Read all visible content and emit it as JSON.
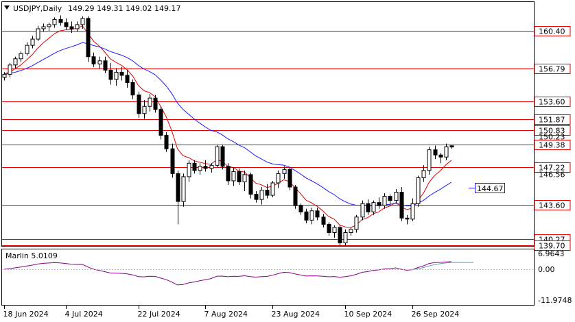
{
  "header": {
    "symbol": "USDJPY,Daily",
    "ohlc": "149.29 149.31 149.02 149.17"
  },
  "indicator": {
    "name": "Marlin 5.0109",
    "scale_top": "6.9643",
    "scale_zero": "0.00",
    "scale_bottom": "-11.9748"
  },
  "price_levels": [
    {
      "value": 160.4,
      "label": "160.40",
      "boxed": true
    },
    {
      "value": 156.79,
      "label": "156.79",
      "boxed": true
    },
    {
      "value": 153.6,
      "label": "153.60",
      "boxed": true
    },
    {
      "value": 151.87,
      "label": "151.87",
      "boxed": true
    },
    {
      "value": 150.83,
      "label": "150.83",
      "boxed": true
    },
    {
      "value": 150.23,
      "label": "150.23",
      "boxed": false
    },
    {
      "value": 149.38,
      "label": "149.38",
      "boxed": true
    },
    {
      "value": 147.22,
      "label": "147.22",
      "boxed": true
    },
    {
      "value": 146.56,
      "label": "146.56",
      "boxed": false
    },
    {
      "value": 143.6,
      "label": "143.60",
      "boxed": true
    },
    {
      "value": 140.27,
      "label": "140.27",
      "boxed": true
    },
    {
      "value": 139.7,
      "label": "139.70",
      "boxed": true
    }
  ],
  "ma_label": "144.67",
  "dates": [
    {
      "label": "18 Jun 2024",
      "bar": 0
    },
    {
      "label": "4 Jul 2024",
      "bar": 11
    },
    {
      "label": "22 Jul 2024",
      "bar": 24
    },
    {
      "label": "7 Aug 2024",
      "bar": 36
    },
    {
      "label": "23 Aug 2024",
      "bar": 48
    },
    {
      "label": "10 Sep 2024",
      "bar": 61
    },
    {
      "label": "26 Sep 2024",
      "bar": 73
    }
  ],
  "colors": {
    "level_line": "#e00000",
    "ma_fast": "#e00000",
    "ma_slow": "#1a1aff",
    "oscillator": "#8b008b",
    "signal": "#5f9ea0",
    "ma_label_box": "#1a1aff"
  },
  "chart_data": {
    "type": "candlestick",
    "ylim": [
      139.5,
      162.0
    ],
    "candles": [
      [
        155.9,
        156.4,
        155.6,
        156.2
      ],
      [
        156.2,
        157.3,
        155.9,
        157.1
      ],
      [
        157.1,
        157.9,
        156.8,
        157.7
      ],
      [
        157.7,
        158.4,
        157.4,
        158.2
      ],
      [
        158.2,
        159.3,
        158.0,
        159.0
      ],
      [
        159.0,
        159.9,
        158.7,
        159.6
      ],
      [
        159.6,
        160.9,
        159.4,
        160.6
      ],
      [
        160.6,
        161.1,
        160.3,
        160.8
      ],
      [
        160.8,
        161.2,
        160.4,
        161.0
      ],
      [
        161.0,
        161.7,
        160.7,
        161.5
      ],
      [
        161.5,
        161.9,
        160.9,
        161.2
      ],
      [
        161.2,
        161.6,
        160.5,
        160.8
      ],
      [
        160.8,
        161.3,
        160.2,
        160.6
      ],
      [
        160.6,
        161.3,
        160.3,
        161.0
      ],
      [
        161.0,
        161.8,
        160.6,
        161.6
      ],
      [
        161.6,
        161.8,
        157.4,
        157.9
      ],
      [
        157.9,
        158.3,
        156.9,
        157.2
      ],
      [
        157.2,
        157.9,
        156.7,
        157.5
      ],
      [
        157.5,
        157.9,
        156.3,
        156.6
      ],
      [
        156.6,
        157.3,
        155.2,
        155.7
      ],
      [
        155.7,
        156.8,
        155.1,
        156.4
      ],
      [
        156.4,
        156.9,
        155.6,
        156.1
      ],
      [
        156.1,
        156.6,
        154.9,
        155.4
      ],
      [
        155.4,
        155.7,
        153.8,
        154.2
      ],
      [
        154.2,
        154.5,
        152.0,
        152.4
      ],
      [
        152.4,
        153.7,
        151.9,
        153.1
      ],
      [
        153.1,
        154.3,
        152.6,
        153.9
      ],
      [
        153.9,
        154.2,
        152.5,
        152.8
      ],
      [
        152.8,
        153.1,
        149.9,
        150.3
      ],
      [
        150.3,
        150.6,
        148.7,
        149.0
      ],
      [
        149.0,
        149.5,
        146.2,
        146.6
      ],
      [
        146.6,
        146.9,
        141.7,
        143.9
      ],
      [
        143.9,
        146.6,
        143.4,
        146.3
      ],
      [
        146.3,
        147.9,
        145.8,
        147.6
      ],
      [
        147.6,
        147.9,
        146.6,
        146.9
      ],
      [
        146.9,
        147.6,
        146.5,
        147.3
      ],
      [
        147.3,
        147.9,
        146.8,
        147.1
      ],
      [
        147.1,
        147.6,
        146.7,
        147.4
      ],
      [
        147.4,
        149.4,
        147.2,
        149.2
      ],
      [
        149.2,
        149.4,
        147.0,
        147.3
      ],
      [
        147.3,
        147.6,
        145.5,
        145.9
      ],
      [
        145.9,
        147.2,
        145.4,
        146.8
      ],
      [
        146.8,
        147.1,
        145.5,
        145.8
      ],
      [
        145.8,
        146.9,
        144.9,
        146.5
      ],
      [
        146.5,
        146.7,
        144.2,
        144.6
      ],
      [
        144.6,
        144.9,
        143.8,
        144.1
      ],
      [
        144.1,
        145.3,
        143.6,
        145.0
      ],
      [
        145.0,
        145.6,
        144.2,
        144.5
      ],
      [
        144.5,
        145.9,
        144.3,
        145.7
      ],
      [
        145.7,
        146.9,
        145.2,
        146.6
      ],
      [
        146.6,
        147.3,
        146.1,
        147.0
      ],
      [
        147.0,
        147.2,
        145.0,
        145.3
      ],
      [
        145.3,
        145.5,
        143.2,
        143.5
      ],
      [
        143.5,
        143.7,
        142.6,
        142.9
      ],
      [
        142.9,
        143.2,
        141.8,
        142.1
      ],
      [
        142.1,
        143.3,
        141.7,
        143.0
      ],
      [
        143.0,
        143.3,
        142.1,
        142.4
      ],
      [
        142.4,
        142.7,
        141.4,
        141.7
      ],
      [
        141.7,
        141.9,
        140.6,
        140.9
      ],
      [
        140.9,
        141.6,
        140.4,
        141.4
      ],
      [
        141.4,
        141.6,
        139.6,
        139.9
      ],
      [
        139.9,
        141.2,
        139.6,
        140.9
      ],
      [
        140.9,
        141.4,
        140.6,
        141.2
      ],
      [
        141.2,
        142.6,
        140.9,
        142.4
      ],
      [
        142.4,
        144.0,
        142.1,
        143.7
      ],
      [
        143.7,
        144.1,
        142.6,
        142.9
      ],
      [
        142.9,
        144.0,
        142.6,
        143.8
      ],
      [
        143.8,
        144.3,
        143.2,
        143.5
      ],
      [
        143.5,
        144.7,
        143.2,
        144.4
      ],
      [
        144.4,
        144.6,
        143.6,
        144.0
      ],
      [
        144.0,
        145.1,
        143.7,
        144.8
      ],
      [
        144.8,
        145.3,
        142.0,
        142.3
      ],
      [
        142.3,
        142.6,
        141.7,
        142.2
      ],
      [
        142.2,
        144.2,
        142.0,
        143.7
      ],
      [
        143.7,
        146.4,
        143.4,
        146.2
      ],
      [
        146.2,
        147.4,
        145.8,
        146.9
      ],
      [
        146.9,
        149.2,
        146.5,
        148.9
      ],
      [
        148.9,
        149.3,
        148.0,
        148.4
      ],
      [
        148.4,
        148.6,
        147.6,
        148.2
      ],
      [
        148.2,
        149.5,
        147.9,
        149.2
      ],
      [
        149.29,
        149.31,
        149.02,
        149.17
      ]
    ]
  }
}
